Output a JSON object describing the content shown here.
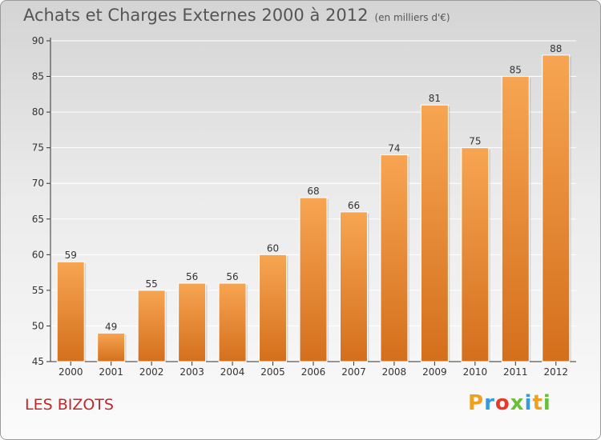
{
  "title": "Achats et Charges Externes 2000 à 2012",
  "subtitle": "(en milliers d'€)",
  "location": "LES BIZOTS",
  "brand": "Proxiti",
  "colors": {
    "bar_light": "#f7a552",
    "bar_dark": "#d46f1c",
    "axis": "#333333",
    "title": "#555555",
    "location": "#c0282b"
  },
  "chart_data": {
    "type": "bar",
    "title": "Achats et Charges Externes 2000 à 2012",
    "subtitle": "(en milliers d'€)",
    "categories": [
      "2000",
      "2001",
      "2002",
      "2003",
      "2004",
      "2005",
      "2006",
      "2007",
      "2008",
      "2009",
      "2010",
      "2011",
      "2012"
    ],
    "values": [
      59,
      49,
      55,
      56,
      56,
      60,
      68,
      66,
      74,
      81,
      75,
      85,
      88
    ],
    "ylim": [
      45,
      90
    ],
    "yticks": [
      45,
      50,
      55,
      60,
      65,
      70,
      75,
      80,
      85,
      90
    ],
    "xlabel": "",
    "ylabel": "",
    "grid": true,
    "data_labels": true
  }
}
